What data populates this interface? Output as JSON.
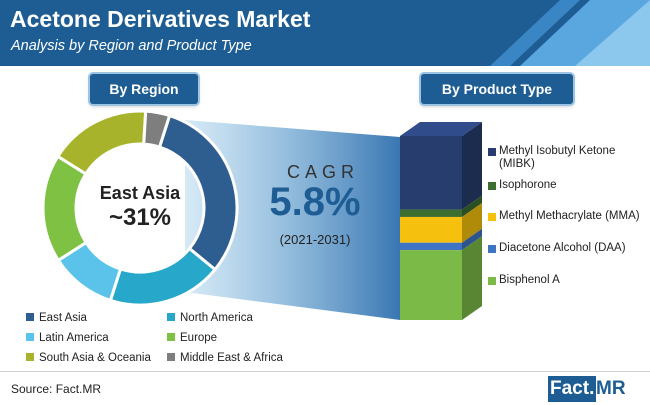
{
  "header": {
    "title": "Acetone Derivatives Market",
    "subtitle": "Analysis by Region and Product Type"
  },
  "buttons": {
    "region": "By Region",
    "product": "By Product Type"
  },
  "center": {
    "label": "East Asia",
    "value": "~31%"
  },
  "cagr": {
    "label": "CAGR",
    "value": "5.8%",
    "period": "(2021-2031)"
  },
  "colors": {
    "header": "#1d5d93",
    "east_asia": "#2e5d8f",
    "north_america": "#27a7c9",
    "latin_america": "#5bc3ea",
    "europe": "#7ec143",
    "south_asia_oceania": "#a7b42b",
    "middle_east_africa": "#7e7e7e",
    "mibk": "#263d6e",
    "isophorone": "#3b6e2f",
    "mma": "#f5c10e",
    "daa": "#3f74c4",
    "bisphenol_a": "#7cba47"
  },
  "chart_data": [
    {
      "type": "pie",
      "title": "By Region",
      "categories": [
        "East Asia",
        "North America",
        "Latin America",
        "Europe",
        "South Asia & Oceania",
        "Middle East & Africa"
      ],
      "values": [
        31,
        19,
        11,
        18,
        17,
        4
      ],
      "colors": [
        "#2e5d8f",
        "#27a7c9",
        "#5bc3ea",
        "#7ec143",
        "#a7b42b",
        "#7e7e7e"
      ],
      "legend_position": "bottom"
    },
    {
      "type": "bar",
      "stacked": true,
      "title": "By Product Type",
      "categories": [
        "Methyl Isobutyl Ketone (MIBK)",
        "Isophorone",
        "Methyl Methacrylate (MMA)",
        "Diacetone Alcohol (DAA)",
        "Bisphenol A"
      ],
      "values": [
        40,
        4,
        14,
        4,
        38
      ],
      "colors": [
        "#263d6e",
        "#3b6e2f",
        "#f5c10e",
        "#3f74c4",
        "#7cba47"
      ],
      "legend_position": "right"
    }
  ],
  "legend_left": [
    {
      "label": "East Asia",
      "color": "#2e5d8f"
    },
    {
      "label": "North America",
      "color": "#27a7c9"
    },
    {
      "label": "Latin America",
      "color": "#5bc3ea"
    },
    {
      "label": "Europe",
      "color": "#7ec143"
    },
    {
      "label": "South Asia & Oceania",
      "color": "#a7b42b"
    },
    {
      "label": "Middle East & Africa",
      "color": "#7e7e7e"
    }
  ],
  "legend_right": [
    {
      "label": "Methyl Isobutyl Ketone (MIBK)",
      "color": "#263d6e"
    },
    {
      "label": "Isophorone",
      "color": "#3b6e2f"
    },
    {
      "label": "Methyl Methacrylate (MMA)",
      "color": "#f5c10e"
    },
    {
      "label": "Diacetone Alcohol (DAA)",
      "color": "#3f74c4"
    },
    {
      "label": "Bisphenol A",
      "color": "#7cba47"
    }
  ],
  "footer": {
    "source": "Source: Fact.MR",
    "logo_fact": "Fact.",
    "logo_mr": "MR"
  }
}
